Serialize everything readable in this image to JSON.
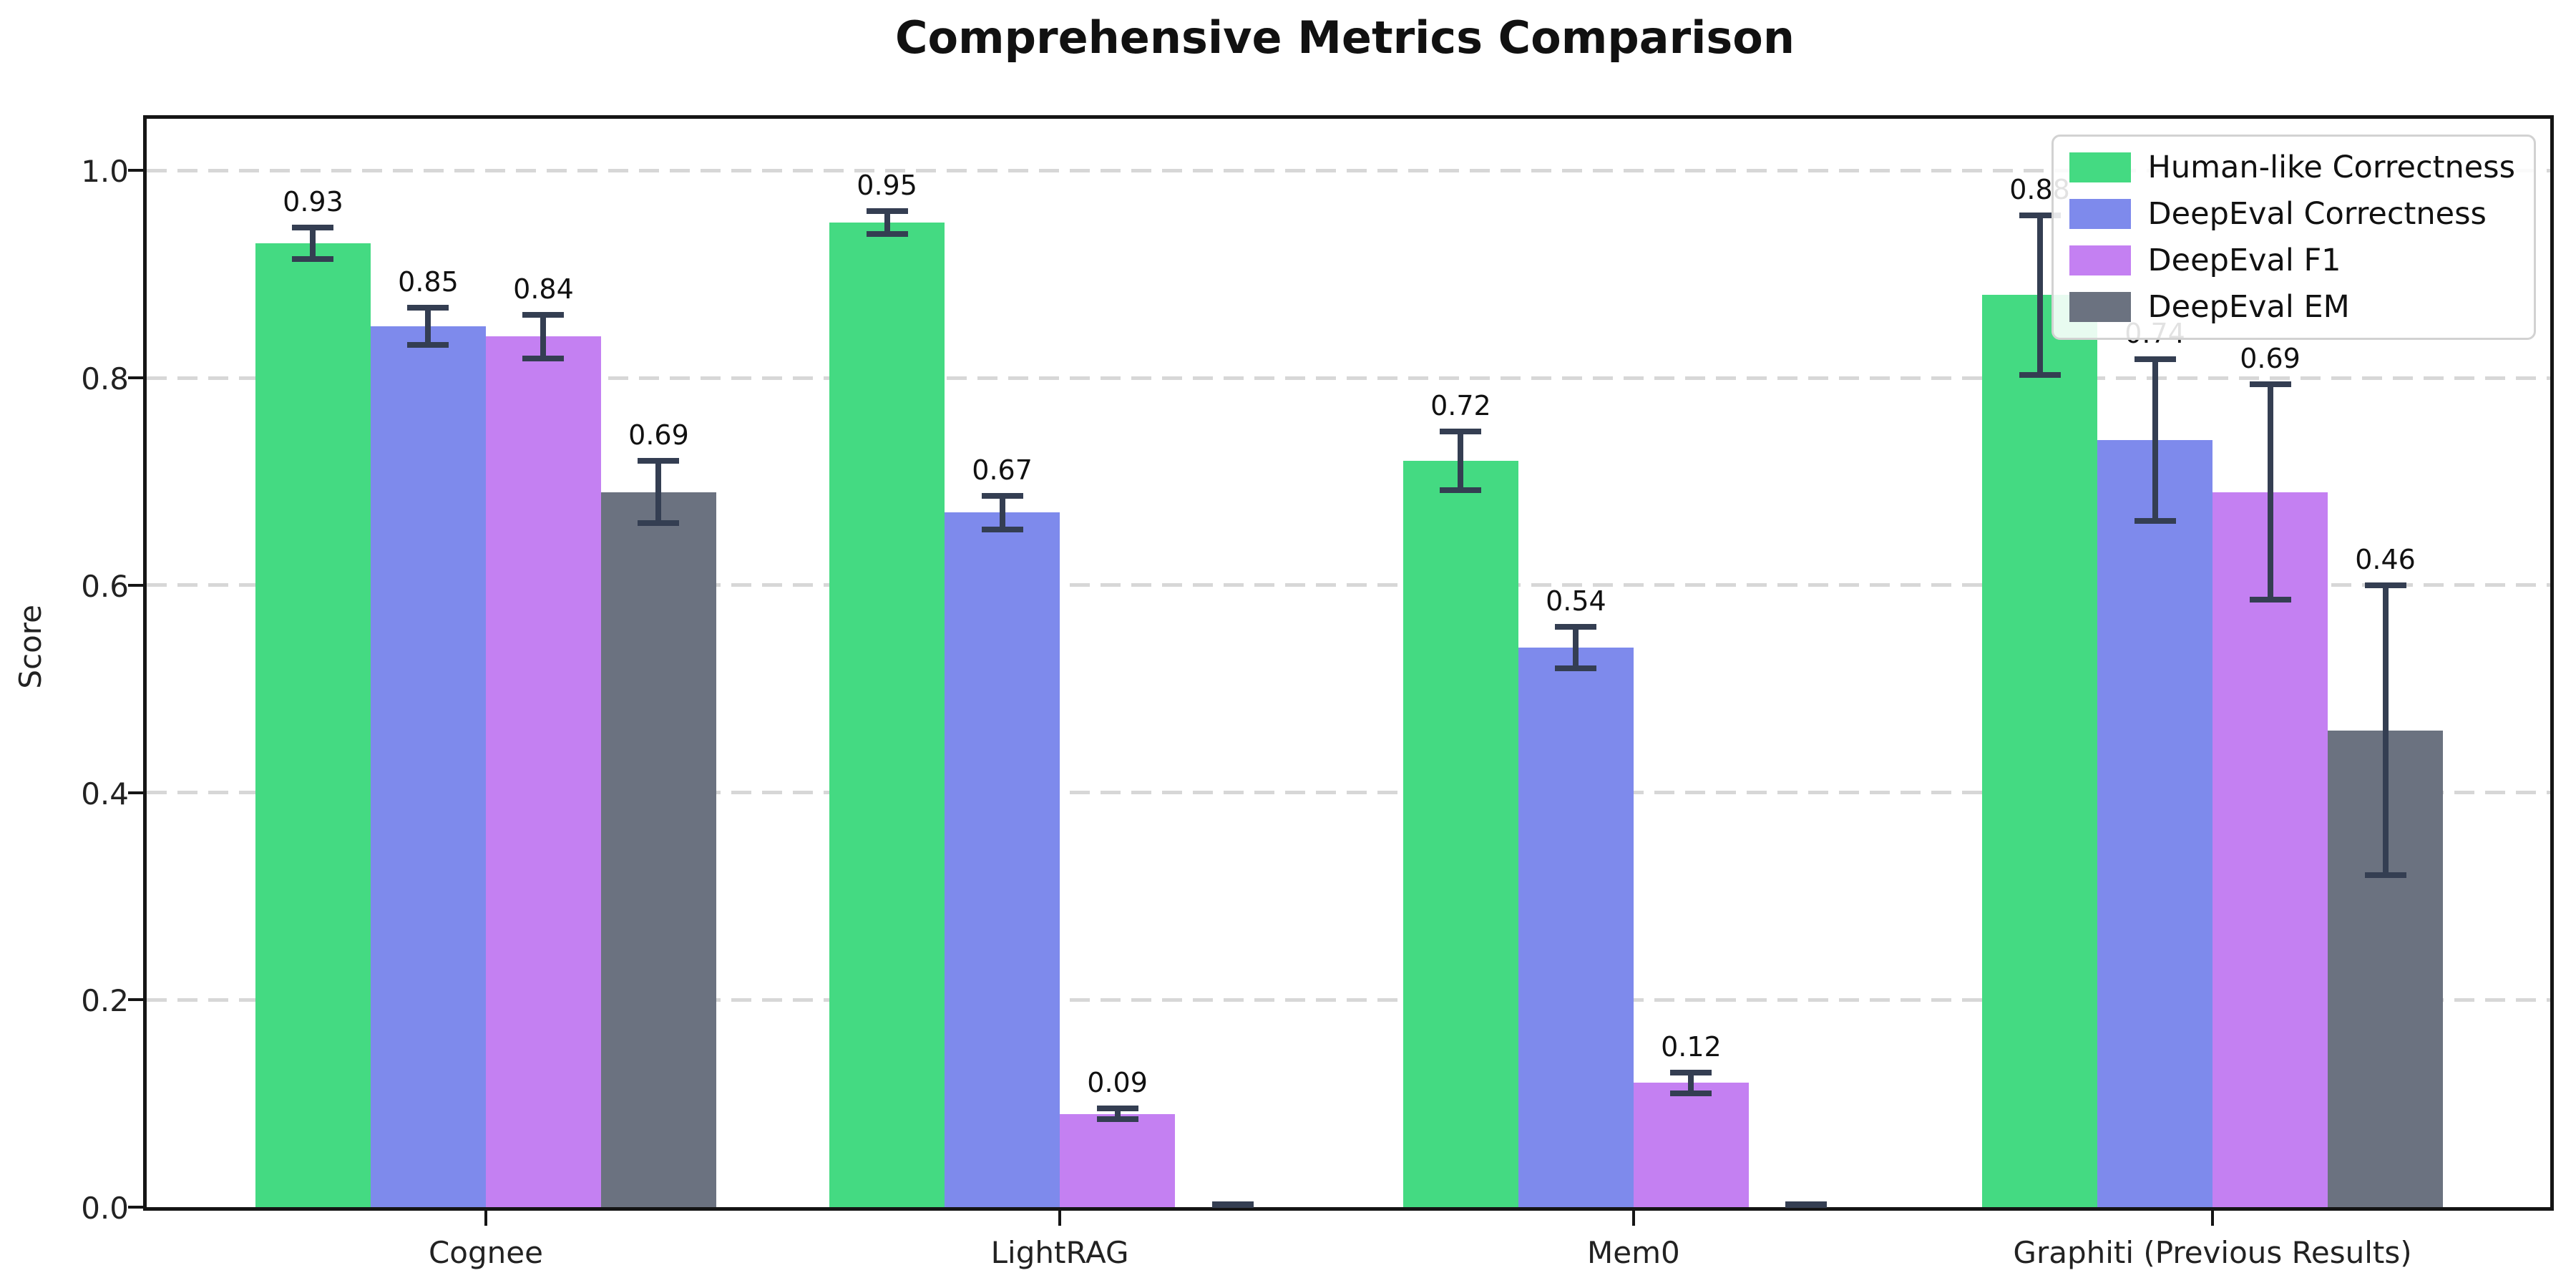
{
  "chart_data": {
    "type": "bar",
    "title": "Comprehensive Metrics Comparison",
    "xlabel": "",
    "ylabel": "Score",
    "ylim": [
      0,
      1.05
    ],
    "yticks": [
      "0.0",
      "0.2",
      "0.4",
      "0.6",
      "0.8",
      "1.0"
    ],
    "grid": {
      "axis": "y",
      "style": "dashed",
      "color": "#d7d7d7"
    },
    "legend_position": "upper right",
    "error_bar_color": "#343e52",
    "categories": [
      "Cognee",
      "LightRAG",
      "Mem0",
      "Graphiti (Previous Results)"
    ],
    "series": [
      {
        "name": "Human-like Correctness",
        "color": "#44da82",
        "values": [
          0.93,
          0.95,
          0.72,
          0.88
        ],
        "errors": [
          0.015,
          0.011,
          0.028,
          0.077
        ],
        "labels": [
          "0.93",
          "0.95",
          "0.72",
          "0.88"
        ]
      },
      {
        "name": "DeepEval Correctness",
        "color": "#7e8aec",
        "values": [
          0.85,
          0.67,
          0.54,
          0.74
        ],
        "errors": [
          0.018,
          0.016,
          0.02,
          0.078
        ],
        "labels": [
          "0.85",
          "0.67",
          "0.54",
          "0.74"
        ]
      },
      {
        "name": "DeepEval F1",
        "color": "#c480f2",
        "values": [
          0.84,
          0.09,
          0.12,
          0.69
        ],
        "errors": [
          0.021,
          0.005,
          0.01,
          0.104
        ],
        "labels": [
          "0.84",
          "0.09",
          "0.12",
          "0.69"
        ]
      },
      {
        "name": "DeepEval EM",
        "color": "#6b7280",
        "values": [
          0.69,
          0.0,
          0.0,
          0.46
        ],
        "errors": [
          0.03,
          0.002,
          0.002,
          0.14
        ],
        "labels": [
          "0.69",
          null,
          null,
          "0.46"
        ]
      }
    ]
  }
}
